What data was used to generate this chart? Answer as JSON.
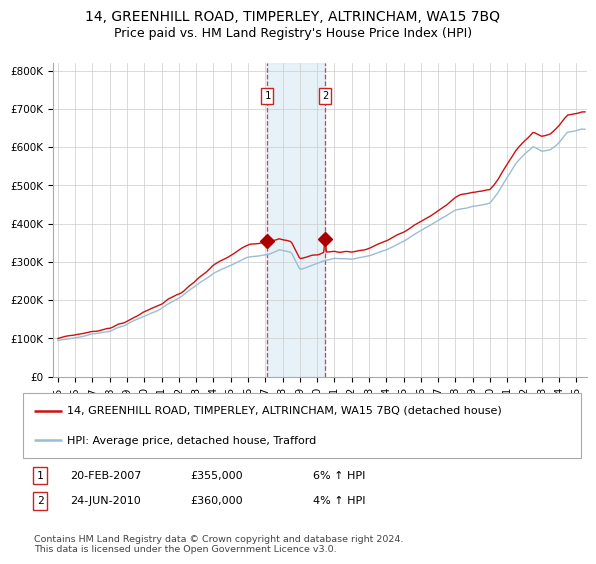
{
  "title": "14, GREENHILL ROAD, TIMPERLEY, ALTRINCHAM, WA15 7BQ",
  "subtitle": "Price paid vs. HM Land Registry's House Price Index (HPI)",
  "ylim": [
    0,
    820000
  ],
  "yticks": [
    0,
    100000,
    200000,
    300000,
    400000,
    500000,
    600000,
    700000,
    800000
  ],
  "ytick_labels": [
    "£0",
    "£100K",
    "£200K",
    "£300K",
    "£400K",
    "£500K",
    "£600K",
    "£700K",
    "£800K"
  ],
  "hpi_color": "#9bbdd4",
  "price_color": "#cc1111",
  "marker_color": "#aa0000",
  "shade_color": "#d8e8f4",
  "dashed_color": "#cc4444",
  "grid_color": "#cccccc",
  "bg_color": "#ffffff",
  "legend_label_red": "14, GREENHILL ROAD, TIMPERLEY, ALTRINCHAM, WA15 7BQ (detached house)",
  "legend_label_blue": "HPI: Average price, detached house, Trafford",
  "sale1_date": "20-FEB-2007",
  "sale1_price": "£355,000",
  "sale1_hpi": "6% ↑ HPI",
  "sale1_year": 2007.12,
  "sale2_date": "24-JUN-2010",
  "sale2_price": "£360,000",
  "sale2_hpi": "4% ↑ HPI",
  "sale2_year": 2010.48,
  "copyright_text": "Contains HM Land Registry data © Crown copyright and database right 2024.\nThis data is licensed under the Open Government Licence v3.0.",
  "title_fontsize": 10,
  "subtitle_fontsize": 9,
  "tick_fontsize": 7.5,
  "legend_fontsize": 8,
  "ann_fontsize": 8
}
